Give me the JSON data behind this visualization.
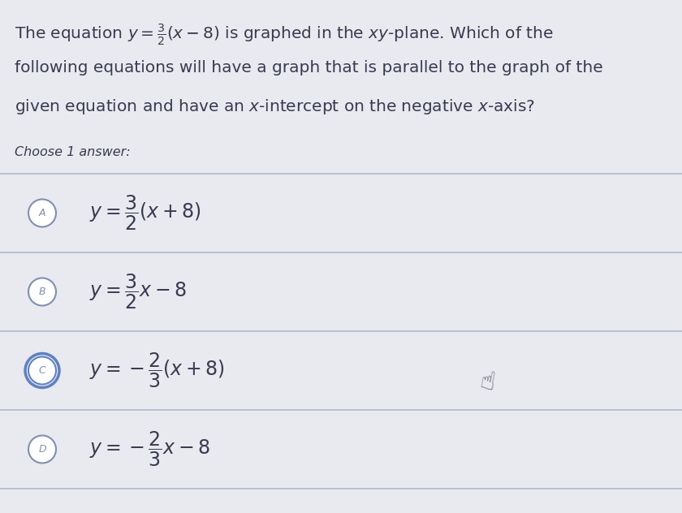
{
  "background_color": "#e8eaf0",
  "option_bg_color": "#e8eaf0",
  "selected_option_bg_color": "#dde2ee",
  "divider_color": "#b0b8cc",
  "text_color": "#3a3a50",
  "circle_border_color": "#8090b0",
  "selected_ring_color": "#6080c0",
  "question_lines": [
    "The equation $y = \\frac{3}{2}(x - 8)$ is graphed in the $xy$-plane. Which of the",
    "following equations will have a graph that is parallel to the graph of the",
    "given equation and have an $x$-intercept on the negative $x$-axis?"
  ],
  "choose_text": "Choose 1 answer:",
  "options": [
    {
      "label": "A",
      "formula": "$y = \\dfrac{3}{2}(x + 8)$",
      "selected": false,
      "circle_selected": false
    },
    {
      "label": "B",
      "formula": "$y = \\dfrac{3}{2}x - 8$",
      "selected": false,
      "circle_selected": false
    },
    {
      "label": "C",
      "formula": "$y = -\\dfrac{2}{3}(x + 8)$",
      "selected": false,
      "circle_selected": true
    },
    {
      "label": "D",
      "formula": "$y = -\\dfrac{2}{3}x - 8$",
      "selected": false,
      "circle_selected": false
    }
  ],
  "font_size_question": 14.5,
  "font_size_choose": 11.5,
  "font_size_formula": 17,
  "font_size_label": 9
}
